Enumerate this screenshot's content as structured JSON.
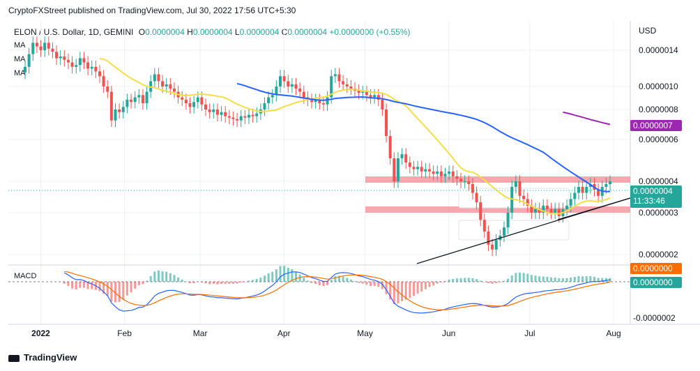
{
  "header": {
    "publisher_line": "CryptoFXStreet published on TradingView.com, Jul 30, 2022 17:56 UTC+5:30"
  },
  "legend": {
    "symbol": "ELON / U.S. Dollar, 1D, GEMINI",
    "o_label": "O",
    "o_value": "0.0000004",
    "h_label": "H",
    "h_value": "0.0000004",
    "l_label": "L",
    "l_value": "0.0000004",
    "c_label": "C",
    "c_value": "0.0000004",
    "change": "+0.0000000 (+0.55%)",
    "ma_labels": [
      "MA",
      "MA",
      "MA"
    ]
  },
  "macd": {
    "label": "MACD"
  },
  "footer": {
    "brand": "TradingView"
  },
  "colors": {
    "up": "#26a69a",
    "down": "#ef5350",
    "ma_yellow": "#f5de48",
    "ma_blue": "#2962ff",
    "ma_purple": "#9c27b0",
    "zone": "#f28b93",
    "macd_line": "#2962ff",
    "signal_line": "#ff6d00",
    "last_price_tag": "#26a69a",
    "ma200_tag": "#9c27b0"
  },
  "chart_data": {
    "type": "candlestick",
    "symbol": "ELON/USD",
    "timeframe": "1D",
    "y_axis_label": "USD",
    "y_ticks": [
      "0.0000014",
      "0.0000010",
      "0.0000008",
      "0.0000006",
      "0.0000004",
      "0.0000003",
      "0.0000002"
    ],
    "x_ticks": [
      "2022",
      "Feb",
      "Mar",
      "Apr",
      "May",
      "Jun",
      "Jul",
      "Aug"
    ],
    "x_tick_dates": [
      "2022-01-01",
      "2022-02-01",
      "2022-03-01",
      "2022-04-01",
      "2022-05-01",
      "2022-06-01",
      "2022-07-01",
      "2022-08-01"
    ],
    "last_price": {
      "value": "0.0000004",
      "countdown": "11:33:46"
    },
    "ma200_tag": "0.0000007",
    "macd_ticks": [
      "-0.0000002"
    ],
    "macd_tags": [
      "0.0000000",
      "0.0000000"
    ],
    "closes": [
      1.2e-06,
      1.35e-06,
      1.5e-06,
      1.45e-06,
      1.4e-06,
      1.5e-06,
      1.42e-06,
      1.38e-06,
      1.3e-06,
      1.32e-06,
      1.28e-06,
      1.25e-06,
      1.2e-06,
      1.22e-06,
      1.3e-06,
      1.25e-06,
      1.18e-06,
      1.2e-06,
      1.15e-06,
      1.1e-06,
      1e-06,
      9.5e-07,
      7.2e-07,
      8e-07,
      7.8e-07,
      8.2e-07,
      8.8e-07,
      8.6e-07,
      9e-07,
      9.2e-07,
      8.5e-07,
      9.5e-07,
      1.05e-06,
      1.12e-06,
      1.05e-06,
      1e-06,
      1.02e-06,
      9.8e-07,
      9.5e-07,
      9e-07,
      8.8e-07,
      8.5e-07,
      8.2e-07,
      8.6e-07,
      9e-07,
      8.4e-07,
      8e-07,
      7.8e-07,
      8e-07,
      7.6e-07,
      7.8e-07,
      7.5e-07,
      7.4e-07,
      7.3e-07,
      7.2e-07,
      7.5e-07,
      7.4e-07,
      7.6e-07,
      7.5e-07,
      7.7e-07,
      8e-07,
      8.5e-07,
      9e-07,
      9.2e-07,
      1e-06,
      1.1e-06,
      1.05e-06,
      1e-06,
      1.02e-06,
      9.8e-07,
      9.5e-07,
      9e-07,
      8.8e-07,
      8.6e-07,
      8.8e-07,
      8.5e-07,
      8.4e-07,
      9e-07,
      1.1e-06,
      1.12e-06,
      1.05e-06,
      1.02e-06,
      1e-06,
      9.8e-07,
      9.6e-07,
      9.4e-07,
      9.5e-07,
      9.2e-07,
      9e-07,
      9.2e-07,
      8.8e-07,
      8e-07,
      6.2e-07,
      5e-07,
      4e-07,
      5e-07,
      5.2e-07,
      4.8e-07,
      4.6e-07,
      4.5e-07,
      4.6e-07,
      4.4e-07,
      4.5e-07,
      4.4e-07,
      4.3e-07,
      4.4e-07,
      4.2e-07,
      4.3e-07,
      4.4e-07,
      4.2e-07,
      4.1e-07,
      4e-07,
      4e-07,
      3.9e-07,
      3.6e-07,
      3.3e-07,
      2.8e-07,
      2.5e-07,
      2.2e-07,
      2.1e-07,
      2.3e-07,
      2.4e-07,
      2.6e-07,
      3e-07,
      3.8e-07,
      4e-07,
      3.5e-07,
      3.4e-07,
      3.2e-07,
      3e-07,
      3.1e-07,
      3e-07,
      3.2e-07,
      3.1e-07,
      3e-07,
      3.1e-07,
      2.9e-07,
      3.1e-07,
      3.2e-07,
      3.4e-07,
      3.6e-07,
      3.8e-07,
      3.6e-07,
      3.8e-07,
      3.9e-07,
      3.7e-07,
      3.5e-07,
      3.8e-07,
      3.9e-07,
      4e-07
    ]
  }
}
